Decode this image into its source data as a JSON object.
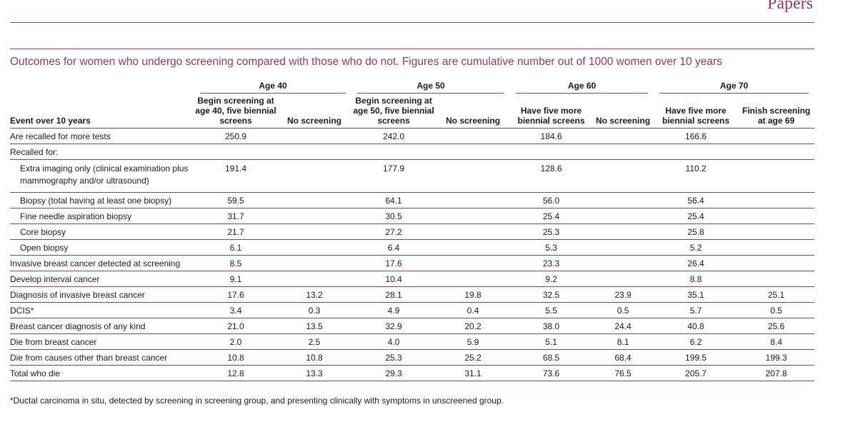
{
  "header": {
    "section": "Papers"
  },
  "caption": "Outcomes for women who undergo screening compared with those who do not. Figures are cumulative number out of 1000 women over 10 years",
  "table": {
    "groups": [
      "Age 40",
      "Age 50",
      "Age 60",
      "Age 70"
    ],
    "event_header": "Event over 10 years",
    "columns": [
      "Begin screening at age 40, five biennial screens",
      "No screening",
      "Begin screening at age 50, five biennial screens",
      "No screening",
      "Have five more biennial screens",
      "No screening",
      "Have five more biennial screens",
      "Finish screening at age 69"
    ],
    "rows": [
      {
        "label": "Are recalled for more tests",
        "values": [
          "250.9",
          "",
          "242.0",
          "",
          "184.6",
          "",
          "166.6",
          ""
        ]
      },
      {
        "label": "Recalled for:",
        "values": [
          "",
          "",
          "",
          "",
          "",
          "",
          "",
          ""
        ]
      },
      {
        "label": "Extra imaging only (clinical examination plus mammography and/or ultrasound)",
        "values": [
          "191.4",
          "",
          "177.9",
          "",
          "128.6",
          "",
          "110.2",
          ""
        ]
      },
      {
        "label": "Biopsy (total having at least one biopsy)",
        "values": [
          "59.5",
          "",
          "64.1",
          "",
          "56.0",
          "",
          "56.4",
          ""
        ]
      },
      {
        "label": "Fine needle aspiration biopsy",
        "values": [
          "31.7",
          "",
          "30.5",
          "",
          "25.4",
          "",
          "25.4",
          ""
        ]
      },
      {
        "label": "Core biopsy",
        "values": [
          "21.7",
          "",
          "27.2",
          "",
          "25.3",
          "",
          "25.8",
          ""
        ]
      },
      {
        "label": "Open biopsy",
        "values": [
          "6.1",
          "",
          "6.4",
          "",
          "5.3",
          "",
          "5.2",
          ""
        ]
      },
      {
        "label": "Invasive breast cancer detected at screening",
        "values": [
          "8.5",
          "",
          "17.6",
          "",
          "23.3",
          "",
          "26.4",
          ""
        ]
      },
      {
        "label": "Develop interval cancer",
        "values": [
          "9.1",
          "",
          "10.4",
          "",
          "9.2",
          "",
          "8.8",
          ""
        ]
      },
      {
        "label": "Diagnosis of invasive breast cancer",
        "values": [
          "17.6",
          "13.2",
          "28.1",
          "19.8",
          "32.5",
          "23.9",
          "35.1",
          "25.1"
        ]
      },
      {
        "label": "DCIS*",
        "values": [
          "3.4",
          "0.3",
          "4.9",
          "0.4",
          "5.5",
          "0.5",
          "5.7",
          "0.5"
        ]
      },
      {
        "label": "Breast cancer diagnosis of any kind",
        "values": [
          "21.0",
          "13.5",
          "32.9",
          "20.2",
          "38.0",
          "24.4",
          "40.8",
          "25.6"
        ]
      },
      {
        "label": "Die from breast cancer",
        "values": [
          "2.0",
          "2.5",
          "4.0",
          "5.9",
          "5.1",
          "8.1",
          "6.2",
          "8.4"
        ]
      },
      {
        "label": "Die from causes other than breast cancer",
        "values": [
          "10.8",
          "10.8",
          "25.3",
          "25.2",
          "68.5",
          "68.4",
          "199.5",
          "199.3"
        ]
      },
      {
        "label": "Total who die",
        "values": [
          "12.8",
          "13.3",
          "29.3",
          "31.1",
          "73.6",
          "76.5",
          "205.7",
          "207.8"
        ]
      }
    ]
  },
  "footnote": "*Ductal carcinoma in situ, detected by screening in screening group, and presenting clinically with symptoms in unscreened group."
}
